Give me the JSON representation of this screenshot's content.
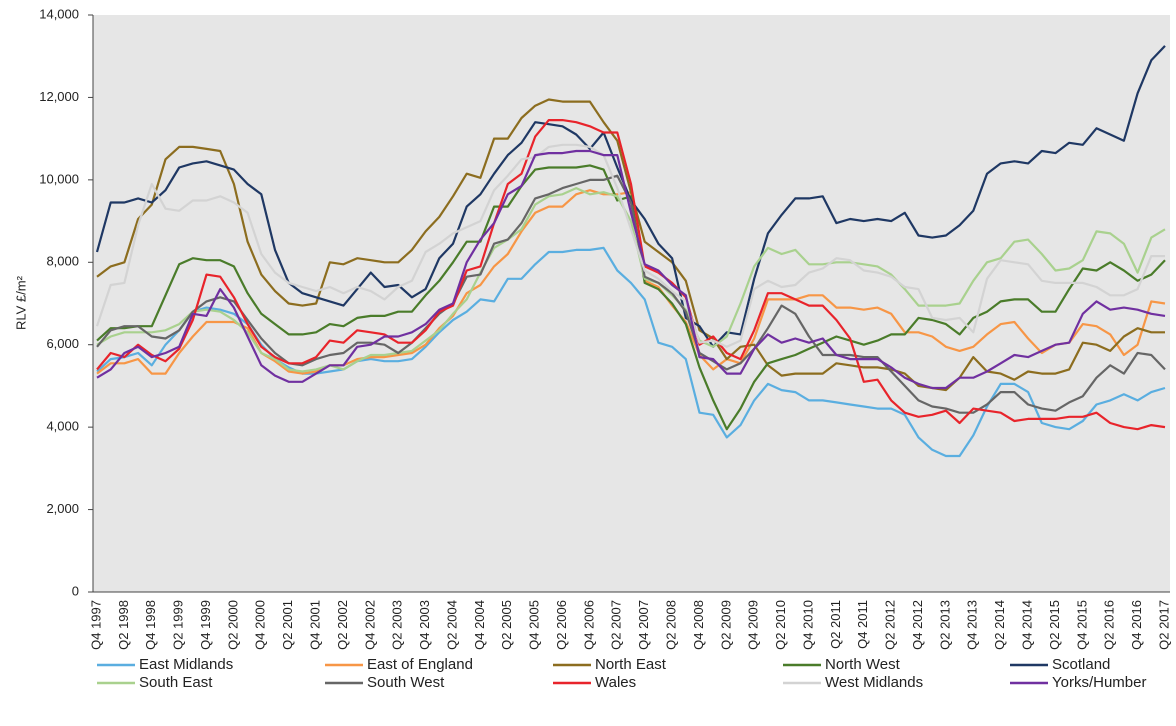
{
  "chart_data": {
    "type": "line",
    "y_label": "RLV £/m²",
    "categories": [
      "Q4 1997",
      null,
      "Q2 1998",
      null,
      "Q4 1998",
      null,
      "Q2 1999",
      null,
      "Q4 1999",
      null,
      "Q2 2000",
      null,
      "Q4 2000",
      null,
      "Q2 2001",
      null,
      "Q4 2001",
      null,
      "Q2 2002",
      null,
      "Q4 2002",
      null,
      "Q2 2003",
      null,
      "Q4 2003",
      null,
      "Q2 2004",
      null,
      "Q4 2004",
      null,
      "Q2 2005",
      null,
      "Q4 2005",
      null,
      "Q2 2006",
      null,
      "Q4 2006",
      null,
      "Q2 2007",
      null,
      "Q4 2007",
      null,
      "Q2 2008",
      null,
      "Q4 2008",
      null,
      "Q2 2009",
      null,
      "Q4 2009",
      null,
      "Q2 2010",
      null,
      "Q4 2010",
      null,
      "Q2 2011",
      null,
      "Q4 2011",
      null,
      "Q2 2012",
      null,
      "Q4 2012",
      null,
      "Q2 2013",
      null,
      "Q4 2013",
      null,
      "Q2 2014",
      null,
      "Q4 2014",
      null,
      "Q2 2015",
      null,
      "Q4 2015",
      null,
      "Q2 2016",
      null,
      "Q4 2016",
      null,
      "Q2 2017"
    ],
    "series": [
      {
        "name": "East Midlands",
        "color": "#5aaee0",
        "values": [
          5350,
          5650,
          5700,
          5800,
          5500,
          6000,
          6350,
          6800,
          6900,
          6850,
          6750,
          6500,
          6000,
          5650,
          5450,
          5300,
          5300,
          5350,
          5400,
          5600,
          5650,
          5600,
          5600,
          5650,
          5950,
          6300,
          6600,
          6800,
          7100,
          7050,
          7600,
          7600,
          7950,
          8250,
          8250,
          8300,
          8300,
          8350,
          7800,
          7500,
          7100,
          6050,
          5950,
          5650,
          4350,
          4300,
          3750,
          4050,
          4650,
          5050,
          4900,
          4850,
          4650,
          4650,
          4600,
          4550,
          4500,
          4450,
          4450,
          4300,
          3750,
          3450,
          3300,
          3300,
          3800,
          4500,
          5050,
          5050,
          4850,
          4100,
          4000,
          3950,
          4150,
          4550,
          4650,
          4800,
          4650,
          4850,
          4950
        ]
      },
      {
        "name": "East of England",
        "color": "#f79646",
        "values": [
          5300,
          5550,
          5550,
          5650,
          5300,
          5300,
          5800,
          6200,
          6550,
          6550,
          6550,
          6400,
          5800,
          5600,
          5350,
          5300,
          5350,
          5500,
          5500,
          5650,
          5700,
          5700,
          5750,
          5800,
          6000,
          6400,
          6700,
          7250,
          7450,
          7900,
          8200,
          8750,
          9200,
          9350,
          9350,
          9650,
          9750,
          9650,
          9650,
          9700,
          7550,
          7400,
          6950,
          6550,
          5750,
          5400,
          5650,
          5550,
          6150,
          7100,
          7100,
          7100,
          7200,
          7200,
          6900,
          6900,
          6850,
          6900,
          6750,
          6300,
          6300,
          6200,
          5950,
          5850,
          5950,
          6250,
          6500,
          6550,
          6150,
          5800,
          6000,
          6050,
          6500,
          6450,
          6250,
          5750,
          6000,
          7050,
          7000
        ]
      },
      {
        "name": "North East",
        "color": "#8c6d1f",
        "values": [
          7650,
          7900,
          8000,
          9050,
          9400,
          10500,
          10800,
          10800,
          10750,
          10700,
          9900,
          8500,
          7700,
          7300,
          7000,
          6950,
          7000,
          8000,
          7950,
          8100,
          8050,
          8000,
          8000,
          8300,
          8750,
          9100,
          9600,
          10150,
          10050,
          11000,
          11000,
          11500,
          11800,
          11950,
          11900,
          11900,
          11900,
          11400,
          10950,
          9700,
          8500,
          8250,
          8000,
          7550,
          6350,
          6150,
          5650,
          5950,
          6000,
          5500,
          5250,
          5300,
          5300,
          5300,
          5550,
          5500,
          5450,
          5450,
          5400,
          5300,
          5000,
          4950,
          4900,
          5200,
          5700,
          5350,
          5300,
          5150,
          5350,
          5300,
          5300,
          5400,
          6050,
          6000,
          5850,
          6200,
          6400,
          6300,
          6300
        ]
      },
      {
        "name": "North West",
        "color": "#4a7c2a",
        "values": [
          6100,
          6400,
          6400,
          6450,
          6450,
          7200,
          7950,
          8100,
          8050,
          8050,
          7900,
          7250,
          6750,
          6500,
          6250,
          6250,
          6300,
          6500,
          6450,
          6650,
          6700,
          6700,
          6800,
          6800,
          7200,
          7550,
          8000,
          8500,
          8500,
          9350,
          9350,
          9850,
          10250,
          10300,
          10300,
          10300,
          10350,
          10250,
          9500,
          9600,
          7500,
          7350,
          7000,
          6500,
          5450,
          4650,
          3950,
          4450,
          5100,
          5550,
          5650,
          5750,
          5900,
          6050,
          6200,
          6100,
          6000,
          6100,
          6250,
          6250,
          6650,
          6600,
          6500,
          6250,
          6650,
          6800,
          7050,
          7100,
          7100,
          6800,
          6800,
          7350,
          7850,
          7800,
          8000,
          7800,
          7550,
          7700,
          8050
        ]
      },
      {
        "name": "Scotland",
        "color": "#1f3864",
        "values": [
          8250,
          9450,
          9450,
          9550,
          9450,
          9750,
          10300,
          10400,
          10450,
          10350,
          10250,
          9900,
          9650,
          8300,
          7500,
          7250,
          7150,
          7050,
          6950,
          7350,
          7750,
          7400,
          7450,
          7150,
          7350,
          8100,
          8450,
          9350,
          9650,
          10150,
          10600,
          10900,
          11400,
          11350,
          11300,
          11100,
          10750,
          11150,
          10300,
          9500,
          9050,
          8450,
          8100,
          6650,
          6450,
          5950,
          6300,
          6250,
          7600,
          8700,
          9150,
          9550,
          9550,
          9600,
          8950,
          9050,
          9000,
          9050,
          9000,
          9200,
          8650,
          8600,
          8650,
          8900,
          9250,
          10150,
          10400,
          10450,
          10400,
          10700,
          10650,
          10900,
          10850,
          11250,
          11100,
          10950,
          12100,
          12900,
          13250
        ]
      },
      {
        "name": "South East",
        "color": "#a9d18e",
        "values": [
          6000,
          6200,
          6300,
          6300,
          6300,
          6350,
          6500,
          6800,
          6850,
          6800,
          6600,
          6300,
          5800,
          5650,
          5400,
          5350,
          5400,
          5500,
          5400,
          5600,
          5750,
          5750,
          5800,
          5850,
          6100,
          6350,
          6750,
          7100,
          7750,
          8350,
          8550,
          8800,
          9400,
          9600,
          9650,
          9800,
          9650,
          9700,
          9600,
          9000,
          7600,
          7500,
          7200,
          6850,
          6100,
          5950,
          6200,
          7000,
          7900,
          8350,
          8200,
          8300,
          7950,
          7950,
          8000,
          8000,
          7950,
          7900,
          7700,
          7350,
          6950,
          6950,
          6950,
          7000,
          7550,
          8000,
          8100,
          8500,
          8550,
          8200,
          7800,
          7850,
          8050,
          8750,
          8700,
          8450,
          7750,
          8600,
          8800
        ]
      },
      {
        "name": "South West",
        "color": "#666666",
        "values": [
          5950,
          6350,
          6450,
          6450,
          6200,
          6150,
          6350,
          6800,
          7050,
          7150,
          7050,
          6600,
          6150,
          5800,
          5550,
          5500,
          5650,
          5750,
          5800,
          6050,
          6050,
          6000,
          5800,
          6050,
          6400,
          6750,
          7000,
          7650,
          7700,
          8450,
          8550,
          8950,
          9550,
          9650,
          9800,
          9900,
          10000,
          10000,
          10100,
          9450,
          7650,
          7500,
          7250,
          6800,
          5800,
          5600,
          5400,
          5550,
          5900,
          6400,
          6950,
          6750,
          6200,
          5750,
          5750,
          5750,
          5700,
          5700,
          5350,
          5000,
          4650,
          4500,
          4450,
          4350,
          4350,
          4550,
          4850,
          4850,
          4550,
          4450,
          4400,
          4600,
          4750,
          5200,
          5500,
          5300,
          5800,
          5750,
          5400
        ]
      },
      {
        "name": "Wales",
        "color": "#e8242b",
        "values": [
          5400,
          5800,
          5700,
          6000,
          5750,
          5600,
          5900,
          6600,
          7700,
          7650,
          7150,
          6500,
          5950,
          5700,
          5550,
          5550,
          5700,
          6100,
          6050,
          6350,
          6300,
          6250,
          6050,
          6050,
          6350,
          6800,
          6950,
          7800,
          7900,
          8950,
          9900,
          10150,
          11050,
          11450,
          11450,
          11400,
          11300,
          11150,
          11150,
          9900,
          7900,
          7750,
          7500,
          7150,
          6000,
          6200,
          5800,
          5650,
          6350,
          7250,
          7250,
          7100,
          6950,
          6950,
          6600,
          6150,
          5100,
          5150,
          4650,
          4350,
          4250,
          4300,
          4400,
          4100,
          4450,
          4400,
          4350,
          4150,
          4200,
          4200,
          4200,
          4250,
          4250,
          4350,
          4100,
          4000,
          3950,
          4050,
          4000
        ]
      },
      {
        "name": "West Midlands",
        "color": "#d3d3d3",
        "values": [
          6450,
          7450,
          7500,
          8900,
          9900,
          9300,
          9250,
          9500,
          9500,
          9600,
          9450,
          9200,
          8200,
          7750,
          7500,
          7400,
          7300,
          7400,
          7250,
          7400,
          7300,
          7100,
          7400,
          7550,
          8250,
          8450,
          8700,
          8850,
          9000,
          9750,
          10100,
          10500,
          10550,
          10800,
          10850,
          10850,
          10800,
          10600,
          9800,
          8800,
          7800,
          7600,
          7300,
          7050,
          6050,
          6100,
          5950,
          6100,
          7350,
          7550,
          7400,
          7450,
          7750,
          7850,
          8100,
          8050,
          7800,
          7750,
          7650,
          7400,
          7350,
          6650,
          6600,
          6650,
          6300,
          7600,
          8050,
          8000,
          7950,
          7550,
          7500,
          7500,
          7500,
          7400,
          7200,
          7200,
          7350,
          8150,
          8150
        ]
      },
      {
        "name": "Yorks/Humber",
        "color": "#7030a0",
        "values": [
          5200,
          5400,
          5800,
          5950,
          5700,
          5800,
          5950,
          6750,
          6700,
          7350,
          6900,
          6200,
          5500,
          5250,
          5100,
          5100,
          5300,
          5500,
          5500,
          5950,
          6000,
          6200,
          6200,
          6300,
          6500,
          6850,
          7000,
          8000,
          8550,
          8950,
          9650,
          9850,
          10600,
          10650,
          10650,
          10700,
          10700,
          10600,
          10600,
          9200,
          7950,
          7800,
          7450,
          7200,
          5700,
          5650,
          5300,
          5300,
          5900,
          6250,
          6050,
          6150,
          6050,
          6150,
          5750,
          5650,
          5650,
          5650,
          5450,
          5200,
          5050,
          4950,
          4950,
          5200,
          5200,
          5350,
          5550,
          5750,
          5700,
          5850,
          6000,
          6050,
          6750,
          7050,
          6850,
          6900,
          6850,
          6750,
          6700
        ]
      }
    ],
    "ylim": [
      0,
      14000
    ],
    "yticks": [
      0,
      {
        "value": 2000,
        "label": "2,000"
      },
      {
        "value": 4000,
        "label": "4,000"
      },
      {
        "value": 6000,
        "label": "6,000"
      },
      {
        "value": 8000,
        "label": "8,000"
      },
      {
        "value": 10000,
        "label": "10,000"
      },
      {
        "value": 12000,
        "label": "12,000"
      },
      {
        "value": 14000,
        "label": "14,000"
      }
    ],
    "grid": false,
    "legend": "bottom"
  }
}
